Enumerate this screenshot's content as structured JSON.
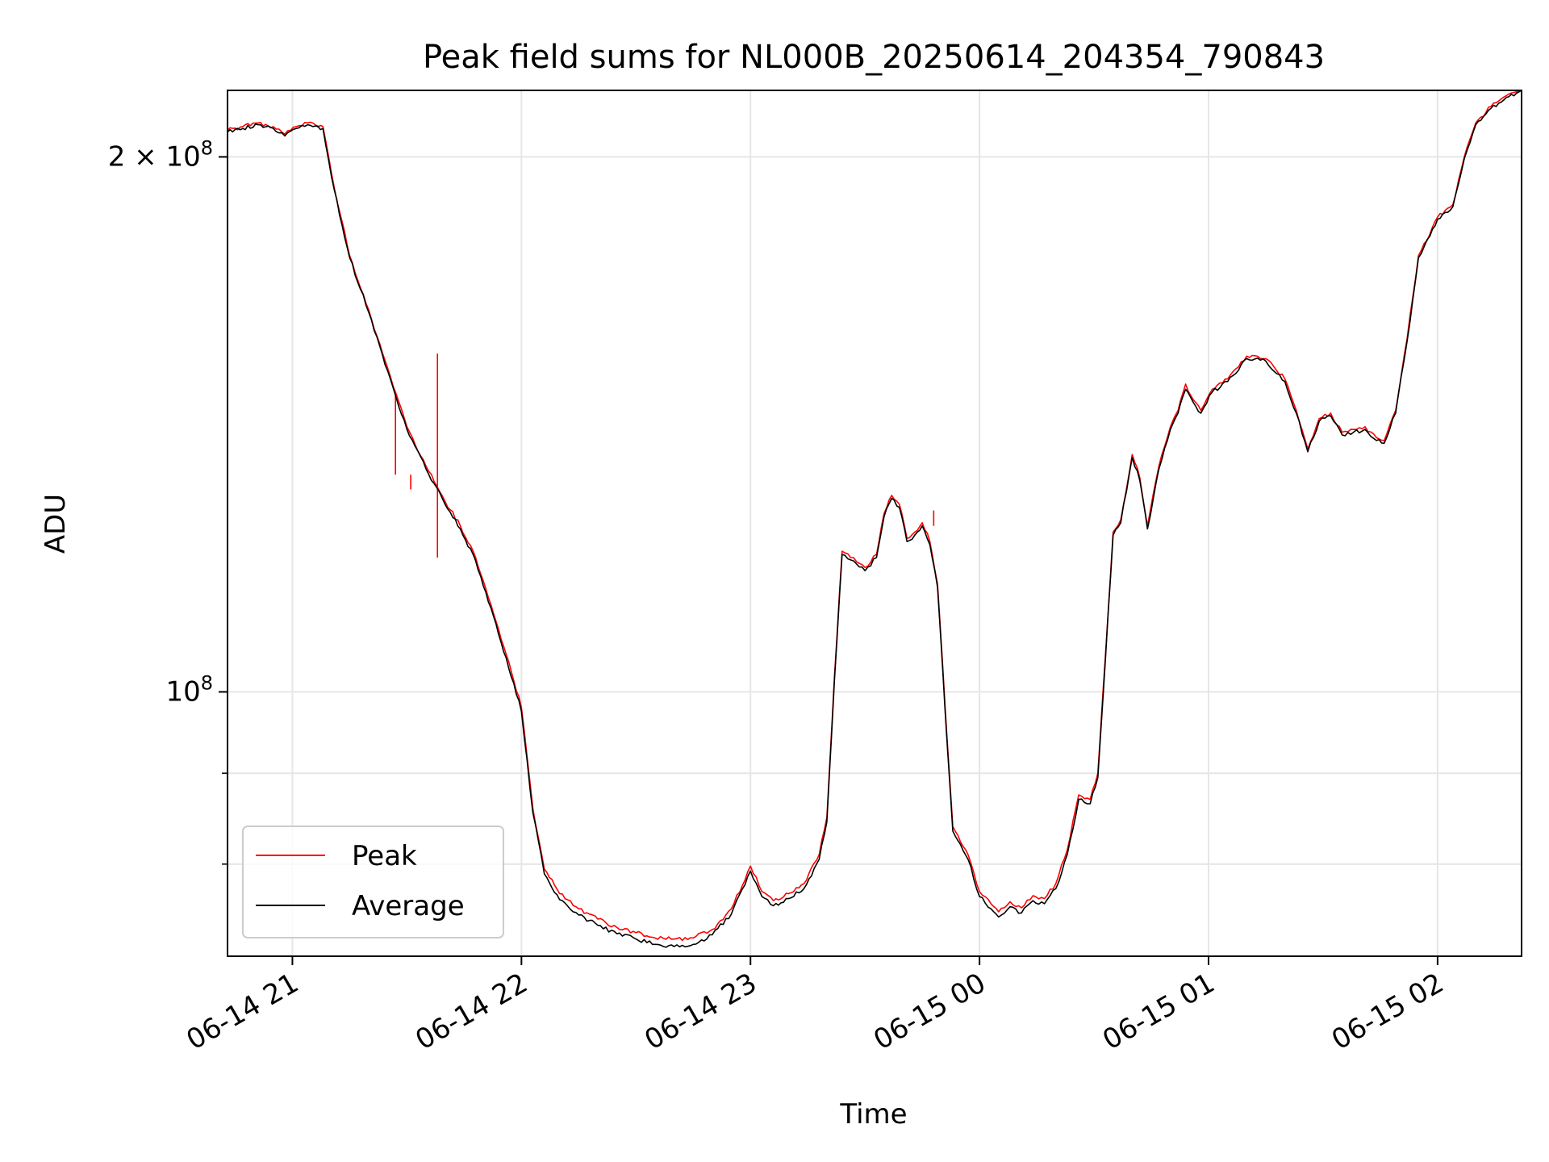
{
  "chart_data": {
    "type": "line",
    "title": "Peak field sums for NL000B_20250614_204354_790843",
    "xlabel": "Time",
    "ylabel": "ADU",
    "yscale": "log",
    "x_range": [
      "2025-06-14 20:43",
      "2025-06-15 02:22"
    ],
    "ylim": [
      71000000,
      218000000
    ],
    "grid": true,
    "legend_position": "lower-left",
    "x_ticks": [
      {
        "time": "2025-06-14 21:00",
        "label": "06-14 21"
      },
      {
        "time": "2025-06-14 22:00",
        "label": "06-14 22"
      },
      {
        "time": "2025-06-14 23:00",
        "label": "06-14 23"
      },
      {
        "time": "2025-06-15 00:00",
        "label": "06-15 00"
      },
      {
        "time": "2025-06-15 01:00",
        "label": "06-15 01"
      },
      {
        "time": "2025-06-15 02:00",
        "label": "06-15 02"
      }
    ],
    "y_major_ticks": [
      {
        "value": 100000000,
        "base": "10",
        "exp": "8"
      },
      {
        "value": 200000000,
        "base": "2 × 10",
        "exp": "8"
      }
    ],
    "y_minor_ticks": [
      80000000,
      90000000
    ],
    "series": [
      {
        "name": "Peak",
        "color": "#ff0000",
        "points": [
          [
            "2025-06-14 20:43",
            207000000
          ],
          [
            "2025-06-14 20:47",
            208000000
          ],
          [
            "2025-06-14 20:51",
            209000000
          ],
          [
            "2025-06-14 20:55",
            208000000
          ],
          [
            "2025-06-14 20:58",
            206000000
          ],
          [
            "2025-06-14 21:01",
            208000000
          ],
          [
            "2025-06-14 21:04",
            209000000
          ],
          [
            "2025-06-14 21:08",
            208000000
          ],
          [
            "2025-06-14 21:11",
            192000000
          ],
          [
            "2025-06-14 21:15",
            176000000
          ],
          [
            "2025-06-14 21:20",
            164000000
          ],
          [
            "2025-06-14 21:25",
            152000000
          ],
          [
            "2025-06-14 21:30",
            141000000
          ],
          [
            "2025-06-14 21:35",
            134000000
          ],
          [
            "2025-06-14 21:40",
            128000000
          ],
          [
            "2025-06-14 21:44",
            124000000
          ],
          [
            "2025-06-14 21:48",
            119000000
          ],
          [
            "2025-06-14 21:52",
            112000000
          ],
          [
            "2025-06-14 21:56",
            105000000
          ],
          [
            "2025-06-14 22:00",
            98000000
          ],
          [
            "2025-06-14 22:03",
            86000000
          ],
          [
            "2025-06-14 22:06",
            79500000
          ],
          [
            "2025-06-14 22:10",
            77000000
          ],
          [
            "2025-06-14 22:15",
            75500000
          ],
          [
            "2025-06-14 22:20",
            74500000
          ],
          [
            "2025-06-14 22:25",
            73700000
          ],
          [
            "2025-06-14 22:30",
            73200000
          ],
          [
            "2025-06-14 22:35",
            72700000
          ],
          [
            "2025-06-14 22:40",
            72600000
          ],
          [
            "2025-06-14 22:45",
            72700000
          ],
          [
            "2025-06-14 22:50",
            73500000
          ],
          [
            "2025-06-14 22:55",
            75500000
          ],
          [
            "2025-06-14 23:00",
            79800000
          ],
          [
            "2025-06-14 23:03",
            77200000
          ],
          [
            "2025-06-14 23:06",
            76300000
          ],
          [
            "2025-06-14 23:10",
            77000000
          ],
          [
            "2025-06-14 23:14",
            78000000
          ],
          [
            "2025-06-14 23:18",
            81000000
          ],
          [
            "2025-06-14 23:20",
            85000000
          ],
          [
            "2025-06-14 23:22",
            102000000
          ],
          [
            "2025-06-14 23:24",
            120000000
          ],
          [
            "2025-06-14 23:27",
            119000000
          ],
          [
            "2025-06-14 23:30",
            117500000
          ],
          [
            "2025-06-14 23:33",
            119500000
          ],
          [
            "2025-06-14 23:35",
            126000000
          ],
          [
            "2025-06-14 23:37",
            129000000
          ],
          [
            "2025-06-14 23:39",
            127500000
          ],
          [
            "2025-06-14 23:41",
            122000000
          ],
          [
            "2025-06-14 23:43",
            123000000
          ],
          [
            "2025-06-14 23:45",
            124500000
          ],
          [
            "2025-06-14 23:47",
            121500000
          ],
          [
            "2025-06-14 23:49",
            115000000
          ],
          [
            "2025-06-14 23:51",
            98000000
          ],
          [
            "2025-06-14 23:53",
            84000000
          ],
          [
            "2025-06-14 23:57",
            81000000
          ],
          [
            "2025-06-15 00:00",
            77200000
          ],
          [
            "2025-06-15 00:03",
            76000000
          ],
          [
            "2025-06-15 00:05",
            75200000
          ],
          [
            "2025-06-15 00:08",
            76200000
          ],
          [
            "2025-06-15 00:11",
            75600000
          ],
          [
            "2025-06-15 00:14",
            76800000
          ],
          [
            "2025-06-15 00:17",
            76500000
          ],
          [
            "2025-06-15 00:20",
            78000000
          ],
          [
            "2025-06-15 00:23",
            81500000
          ],
          [
            "2025-06-15 00:26",
            87500000
          ],
          [
            "2025-06-15 00:29",
            87000000
          ],
          [
            "2025-06-15 00:31",
            90000000
          ],
          [
            "2025-06-15 00:33",
            105000000
          ],
          [
            "2025-06-15 00:35",
            123000000
          ],
          [
            "2025-06-15 00:37",
            125000000
          ],
          [
            "2025-06-15 00:40",
            136000000
          ],
          [
            "2025-06-15 00:42",
            132000000
          ],
          [
            "2025-06-15 00:44",
            124000000
          ],
          [
            "2025-06-15 00:47",
            134000000
          ],
          [
            "2025-06-15 00:50",
            141000000
          ],
          [
            "2025-06-15 00:52",
            144000000
          ],
          [
            "2025-06-15 00:54",
            149000000
          ],
          [
            "2025-06-15 00:56",
            146000000
          ],
          [
            "2025-06-15 00:58",
            144000000
          ],
          [
            "2025-06-15 01:01",
            148000000
          ],
          [
            "2025-06-15 01:05",
            150000000
          ],
          [
            "2025-06-15 01:10",
            154500000
          ],
          [
            "2025-06-15 01:15",
            154000000
          ],
          [
            "2025-06-15 01:20",
            150000000
          ],
          [
            "2025-06-15 01:23",
            144000000
          ],
          [
            "2025-06-15 01:26",
            137000000
          ],
          [
            "2025-06-15 01:29",
            142500000
          ],
          [
            "2025-06-15 01:32",
            143500000
          ],
          [
            "2025-06-15 01:35",
            140000000
          ],
          [
            "2025-06-15 01:38",
            140500000
          ],
          [
            "2025-06-15 01:41",
            141000000
          ],
          [
            "2025-06-15 01:44",
            139000000
          ],
          [
            "2025-06-15 01:46",
            138500000
          ],
          [
            "2025-06-15 01:49",
            144000000
          ],
          [
            "2025-06-15 01:52",
            158000000
          ],
          [
            "2025-06-15 01:55",
            176000000
          ],
          [
            "2025-06-15 01:58",
            181000000
          ],
          [
            "2025-06-15 02:00",
            185000000
          ],
          [
            "2025-06-15 02:04",
            188000000
          ],
          [
            "2025-06-15 02:07",
            200000000
          ],
          [
            "2025-06-15 02:10",
            209000000
          ],
          [
            "2025-06-15 02:14",
            213500000
          ],
          [
            "2025-06-15 02:18",
            216500000
          ],
          [
            "2025-06-15 02:22",
            218000000
          ]
        ],
        "spikes": [
          {
            "time": "2025-06-14 21:27",
            "base": 132500000,
            "top": 147000000
          },
          {
            "time": "2025-06-14 21:31",
            "base": 130000000,
            "top": 132500000
          },
          {
            "time": "2025-06-14 21:38",
            "base": 119000000,
            "top": 155000000
          },
          {
            "time": "2025-06-14 23:48",
            "base": 124000000,
            "top": 126500000
          }
        ]
      },
      {
        "name": "Average",
        "color": "#000000",
        "points": [
          [
            "2025-06-14 20:43",
            206500000
          ],
          [
            "2025-06-14 20:47",
            207500000
          ],
          [
            "2025-06-14 20:51",
            208500000
          ],
          [
            "2025-06-14 20:55",
            207500000
          ],
          [
            "2025-06-14 20:58",
            205500000
          ],
          [
            "2025-06-14 21:01",
            207500000
          ],
          [
            "2025-06-14 21:04",
            208500000
          ],
          [
            "2025-06-14 21:08",
            207500000
          ],
          [
            "2025-06-14 21:11",
            191500000
          ],
          [
            "2025-06-14 21:15",
            175500000
          ],
          [
            "2025-06-14 21:20",
            163500000
          ],
          [
            "2025-06-14 21:25",
            151500000
          ],
          [
            "2025-06-14 21:30",
            140500000
          ],
          [
            "2025-06-14 21:35",
            133500000
          ],
          [
            "2025-06-14 21:40",
            127500000
          ],
          [
            "2025-06-14 21:44",
            123500000
          ],
          [
            "2025-06-14 21:48",
            118500000
          ],
          [
            "2025-06-14 21:52",
            111500000
          ],
          [
            "2025-06-14 21:56",
            104500000
          ],
          [
            "2025-06-14 22:00",
            97500000
          ],
          [
            "2025-06-14 22:03",
            85500000
          ],
          [
            "2025-06-14 22:06",
            79000000
          ],
          [
            "2025-06-14 22:10",
            76400000
          ],
          [
            "2025-06-14 22:15",
            74900000
          ],
          [
            "2025-06-14 22:20",
            73900000
          ],
          [
            "2025-06-14 22:25",
            73100000
          ],
          [
            "2025-06-14 22:30",
            72600000
          ],
          [
            "2025-06-14 22:35",
            72100000
          ],
          [
            "2025-06-14 22:40",
            71900000
          ],
          [
            "2025-06-14 22:45",
            72100000
          ],
          [
            "2025-06-14 22:50",
            73000000
          ],
          [
            "2025-06-14 22:55",
            75000000
          ],
          [
            "2025-06-14 23:00",
            79300000
          ],
          [
            "2025-06-14 23:03",
            76700000
          ],
          [
            "2025-06-14 23:06",
            75800000
          ],
          [
            "2025-06-14 23:10",
            76500000
          ],
          [
            "2025-06-14 23:14",
            77500000
          ],
          [
            "2025-06-14 23:18",
            80500000
          ],
          [
            "2025-06-14 23:20",
            84500000
          ],
          [
            "2025-06-14 23:22",
            101500000
          ],
          [
            "2025-06-14 23:24",
            119500000
          ],
          [
            "2025-06-14 23:27",
            118500000
          ],
          [
            "2025-06-14 23:30",
            117000000
          ],
          [
            "2025-06-14 23:33",
            119000000
          ],
          [
            "2025-06-14 23:35",
            125500000
          ],
          [
            "2025-06-14 23:37",
            128500000
          ],
          [
            "2025-06-14 23:39",
            127000000
          ],
          [
            "2025-06-14 23:41",
            121500000
          ],
          [
            "2025-06-14 23:43",
            122500000
          ],
          [
            "2025-06-14 23:45",
            124000000
          ],
          [
            "2025-06-14 23:47",
            121000000
          ],
          [
            "2025-06-14 23:49",
            114500000
          ],
          [
            "2025-06-14 23:51",
            97500000
          ],
          [
            "2025-06-14 23:53",
            83500000
          ],
          [
            "2025-06-14 23:57",
            80500000
          ],
          [
            "2025-06-15 00:00",
            76700000
          ],
          [
            "2025-06-15 00:03",
            75500000
          ],
          [
            "2025-06-15 00:05",
            74700000
          ],
          [
            "2025-06-15 00:08",
            75700000
          ],
          [
            "2025-06-15 00:11",
            75100000
          ],
          [
            "2025-06-15 00:14",
            76300000
          ],
          [
            "2025-06-15 00:17",
            76000000
          ],
          [
            "2025-06-15 00:20",
            77500000
          ],
          [
            "2025-06-15 00:23",
            81000000
          ],
          [
            "2025-06-15 00:26",
            87000000
          ],
          [
            "2025-06-15 00:29",
            86500000
          ],
          [
            "2025-06-15 00:31",
            89500000
          ],
          [
            "2025-06-15 00:33",
            104500000
          ],
          [
            "2025-06-15 00:35",
            122500000
          ],
          [
            "2025-06-15 00:37",
            124500000
          ],
          [
            "2025-06-15 00:40",
            135500000
          ],
          [
            "2025-06-15 00:42",
            131500000
          ],
          [
            "2025-06-15 00:44",
            123500000
          ],
          [
            "2025-06-15 00:47",
            133500000
          ],
          [
            "2025-06-15 00:50",
            140500000
          ],
          [
            "2025-06-15 00:52",
            143500000
          ],
          [
            "2025-06-15 00:54",
            148000000
          ],
          [
            "2025-06-15 00:56",
            145500000
          ],
          [
            "2025-06-15 00:58",
            143500000
          ],
          [
            "2025-06-15 01:01",
            147500000
          ],
          [
            "2025-06-15 01:05",
            149500000
          ],
          [
            "2025-06-15 01:10",
            154000000
          ],
          [
            "2025-06-15 01:15",
            153500000
          ],
          [
            "2025-06-15 01:20",
            149500000
          ],
          [
            "2025-06-15 01:23",
            143500000
          ],
          [
            "2025-06-15 01:26",
            136500000
          ],
          [
            "2025-06-15 01:29",
            142000000
          ],
          [
            "2025-06-15 01:32",
            143000000
          ],
          [
            "2025-06-15 01:35",
            139500000
          ],
          [
            "2025-06-15 01:38",
            140000000
          ],
          [
            "2025-06-15 01:41",
            140500000
          ],
          [
            "2025-06-15 01:44",
            138500000
          ],
          [
            "2025-06-15 01:46",
            138000000
          ],
          [
            "2025-06-15 01:49",
            143500000
          ],
          [
            "2025-06-15 01:52",
            157500000
          ],
          [
            "2025-06-15 01:55",
            175500000
          ],
          [
            "2025-06-15 01:58",
            180500000
          ],
          [
            "2025-06-15 02:00",
            184500000
          ],
          [
            "2025-06-15 02:04",
            187500000
          ],
          [
            "2025-06-15 02:07",
            199500000
          ],
          [
            "2025-06-15 02:10",
            208500000
          ],
          [
            "2025-06-15 02:14",
            213000000
          ],
          [
            "2025-06-15 02:18",
            216000000
          ],
          [
            "2025-06-15 02:22",
            218000000
          ]
        ]
      }
    ]
  }
}
